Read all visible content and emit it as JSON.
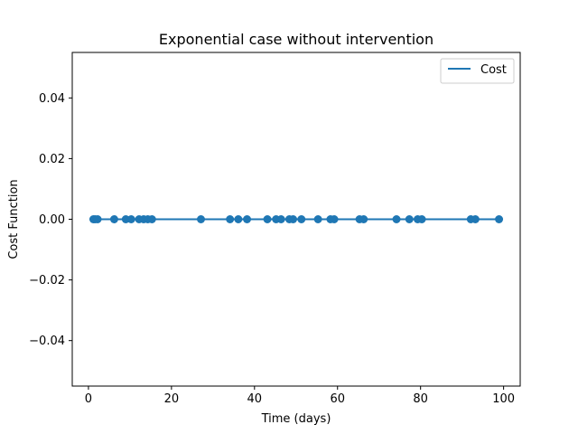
{
  "chart_data": {
    "type": "scatter",
    "title": "Exponential case without intervention",
    "xlabel": "Time (days)",
    "ylabel": "Cost Function",
    "xlim": [
      -3.9,
      104
    ],
    "ylim": [
      -0.055,
      0.055
    ],
    "xticks": [
      0,
      20,
      40,
      60,
      80,
      100
    ],
    "yticks": [
      -0.04,
      -0.02,
      0.0,
      0.02,
      0.04
    ],
    "xtick_labels": [
      "0",
      "20",
      "40",
      "60",
      "80",
      "100"
    ],
    "ytick_labels": [
      "−0.04",
      "−0.02",
      "0.00",
      "0.02",
      "0.04"
    ],
    "grid": false,
    "legend": {
      "position": "upper right",
      "entries": [
        "Cost"
      ]
    },
    "series": [
      {
        "name": "Cost",
        "color": "#1f77b4",
        "marker": "circle",
        "line": true,
        "x": [
          1.2,
          1.6,
          2.2,
          6.2,
          9.0,
          10.3,
          12.2,
          13.3,
          14.3,
          15.3,
          27.1,
          34.1,
          36.1,
          38.2,
          43.1,
          45.2,
          46.4,
          48.4,
          49.3,
          51.3,
          55.3,
          58.3,
          59.2,
          65.3,
          66.3,
          74.2,
          77.3,
          79.3,
          80.3,
          92.1,
          93.2,
          98.9
        ],
        "y": [
          0,
          0,
          0,
          0,
          0,
          0,
          0,
          0,
          0,
          0,
          0,
          0,
          0,
          0,
          0,
          0,
          0,
          0,
          0,
          0,
          0,
          0,
          0,
          0,
          0,
          0,
          0,
          0,
          0,
          0,
          0,
          0
        ]
      }
    ]
  }
}
